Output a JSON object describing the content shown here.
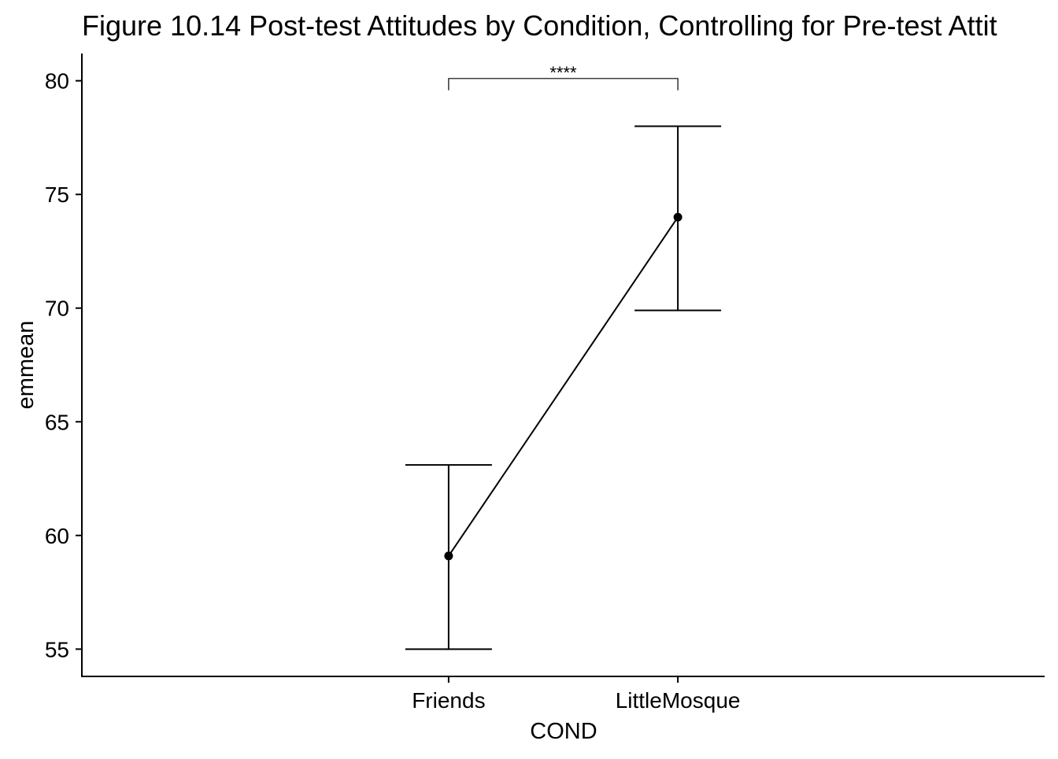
{
  "chart_data": {
    "type": "line",
    "title": "Figure 10.14 Post-test Attitudes by Condition, Controlling for Pre-test Attit",
    "xlabel": "COND",
    "ylabel": "emmean",
    "categories": [
      "Friends",
      "LittleMosque"
    ],
    "series": [
      {
        "values": [
          59.1,
          74.0
        ],
        "ci_lower": [
          55.0,
          69.9
        ],
        "ci_upper": [
          63.1,
          78.0
        ]
      }
    ],
    "ylim": [
      53.8,
      81.2
    ],
    "yticks": [
      55,
      60,
      65,
      70,
      75,
      80
    ],
    "significance": {
      "from": "Friends",
      "to": "LittleMosque",
      "y": 80.1,
      "label": "****"
    },
    "grid": false,
    "legend": "none"
  }
}
